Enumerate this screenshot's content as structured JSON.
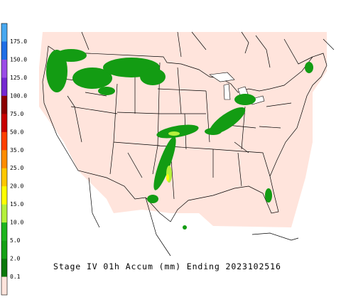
{
  "caption": "Stage IV 01h Accum (mm) Ending 2023102516",
  "legend": {
    "labels": [
      "175.0",
      "150.0",
      "125.0",
      "100.0",
      "75.0",
      "50.0",
      "35.0",
      "25.0",
      "20.0",
      "15.0",
      "10.0",
      "5.0",
      "2.0",
      "0.1"
    ],
    "colors": [
      "#48a8f0",
      "#1e6ee6",
      "#9a4ce6",
      "#7428d0",
      "#8b0000",
      "#c80000",
      "#ff4000",
      "#ff8c00",
      "#ffc800",
      "#ffff00",
      "#b4f03c",
      "#1eb41e",
      "#14a014",
      "#0a780a",
      "#ffe4dc"
    ]
  }
}
